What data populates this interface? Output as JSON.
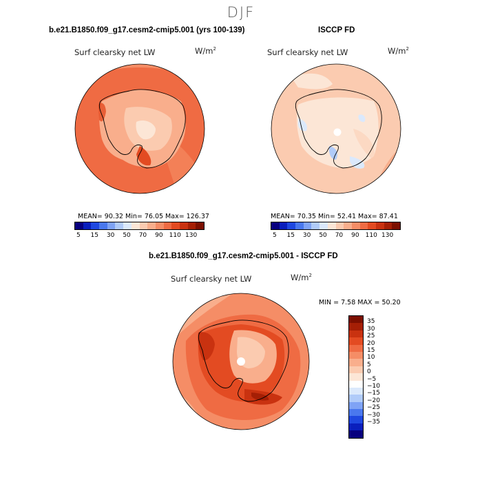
{
  "season": "DJF",
  "panels": {
    "model": {
      "title": "b.e21.B1850.f09_g17.cesm2-cmip5.001 (yrs 100-139)",
      "subtitle": "Surf clearsky net LW",
      "units_base": "W/m",
      "units_exp": "2",
      "stats": "MEAN= 90.32 Min= 76.05 Max= 126.37"
    },
    "obs": {
      "title": "ISCCP FD",
      "subtitle": "Surf clearsky net LW",
      "units_base": "W/m",
      "units_exp": "2",
      "stats": "MEAN= 70.35 Min= 52.41 Max= 87.41"
    },
    "diff": {
      "title": "b.e21.B1850.f09_g17.cesm2-cmip5.001 - ISCCP FD",
      "subtitle": "Surf clearsky net LW",
      "units_base": "W/m",
      "units_exp": "2",
      "stats": "MIN = 7.58 MAX = 50.20"
    }
  },
  "colorbar_abs": {
    "colors": [
      "#08007f",
      "#0a1fbd",
      "#1f48e0",
      "#4a78ee",
      "#7fa3f5",
      "#b0cbf9",
      "#dbe9fc",
      "#fce6d6",
      "#fbcbb0",
      "#f9ae8c",
      "#f58d66",
      "#ef6b43",
      "#e34b22",
      "#c93210",
      "#a51f05",
      "#7c0f00"
    ],
    "labels": [
      "5",
      "15",
      "30",
      "50",
      "70",
      "90",
      "110",
      "130"
    ]
  },
  "colorbar_diff": {
    "colors": [
      "#7c0f00",
      "#a51f05",
      "#c93210",
      "#e34b22",
      "#ef6b43",
      "#f58d66",
      "#f9ae8c",
      "#fbcbb0",
      "#fce6d6",
      "#ffffff",
      "#dbe9fc",
      "#b0cbf9",
      "#7fa3f5",
      "#4a78ee",
      "#1f48e0",
      "#0a1fbd",
      "#08007f"
    ],
    "labels": [
      "35",
      "30",
      "25",
      "20",
      "15",
      "10",
      "5",
      "0",
      "−5",
      "−10",
      "−15",
      "−20",
      "−25",
      "−30",
      "−35"
    ]
  }
}
